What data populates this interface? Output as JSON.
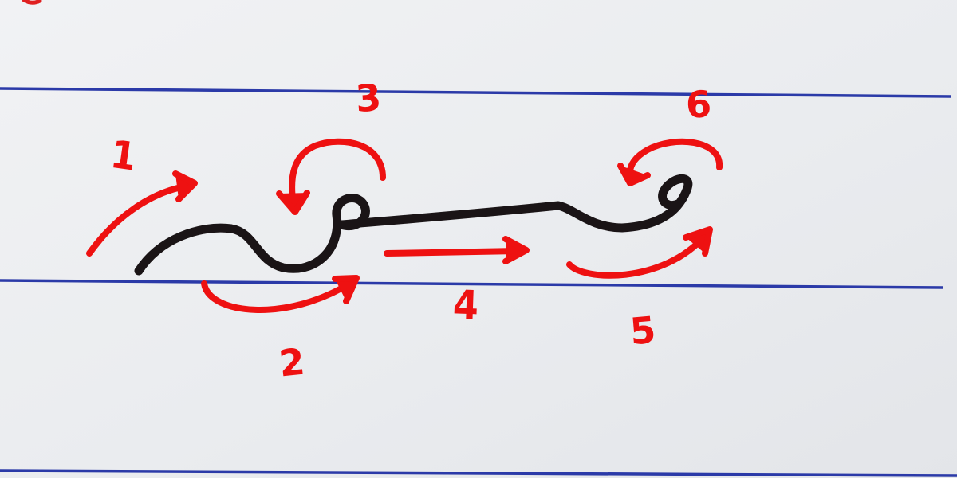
{
  "colors": {
    "paper": "#eceef0",
    "rule_line": "#2b3aa8",
    "margin_mark": "#e02020",
    "ink_stroke": "#1a1416",
    "arrow": "#ee1111"
  },
  "steps": [
    {
      "number": "1"
    },
    {
      "number": "2"
    },
    {
      "number": "3"
    },
    {
      "number": "4"
    },
    {
      "number": "5"
    },
    {
      "number": "6"
    }
  ]
}
